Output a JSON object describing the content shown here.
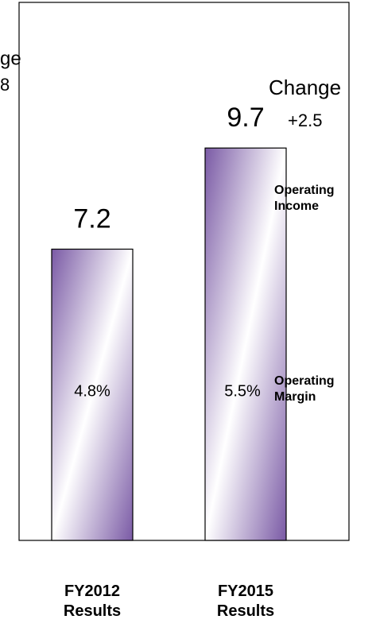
{
  "chart_data": {
    "type": "bar",
    "categories": [
      "FY2012 Results",
      "FY2015 Results"
    ],
    "series": [
      {
        "name": "Operating Income",
        "color": "#7a5aa5",
        "values": [
          7.2,
          9.7
        ]
      }
    ],
    "margin": {
      "name": "Operating Margin",
      "values": [
        4.8,
        5.5
      ],
      "value_labels": [
        "4.8%",
        "5.5%"
      ]
    },
    "change": {
      "label": "Change",
      "value": 2.5,
      "value_label": "+2.5"
    },
    "annotations": [
      "ge",
      "8"
    ],
    "ylim": [
      0,
      13.3
    ]
  }
}
